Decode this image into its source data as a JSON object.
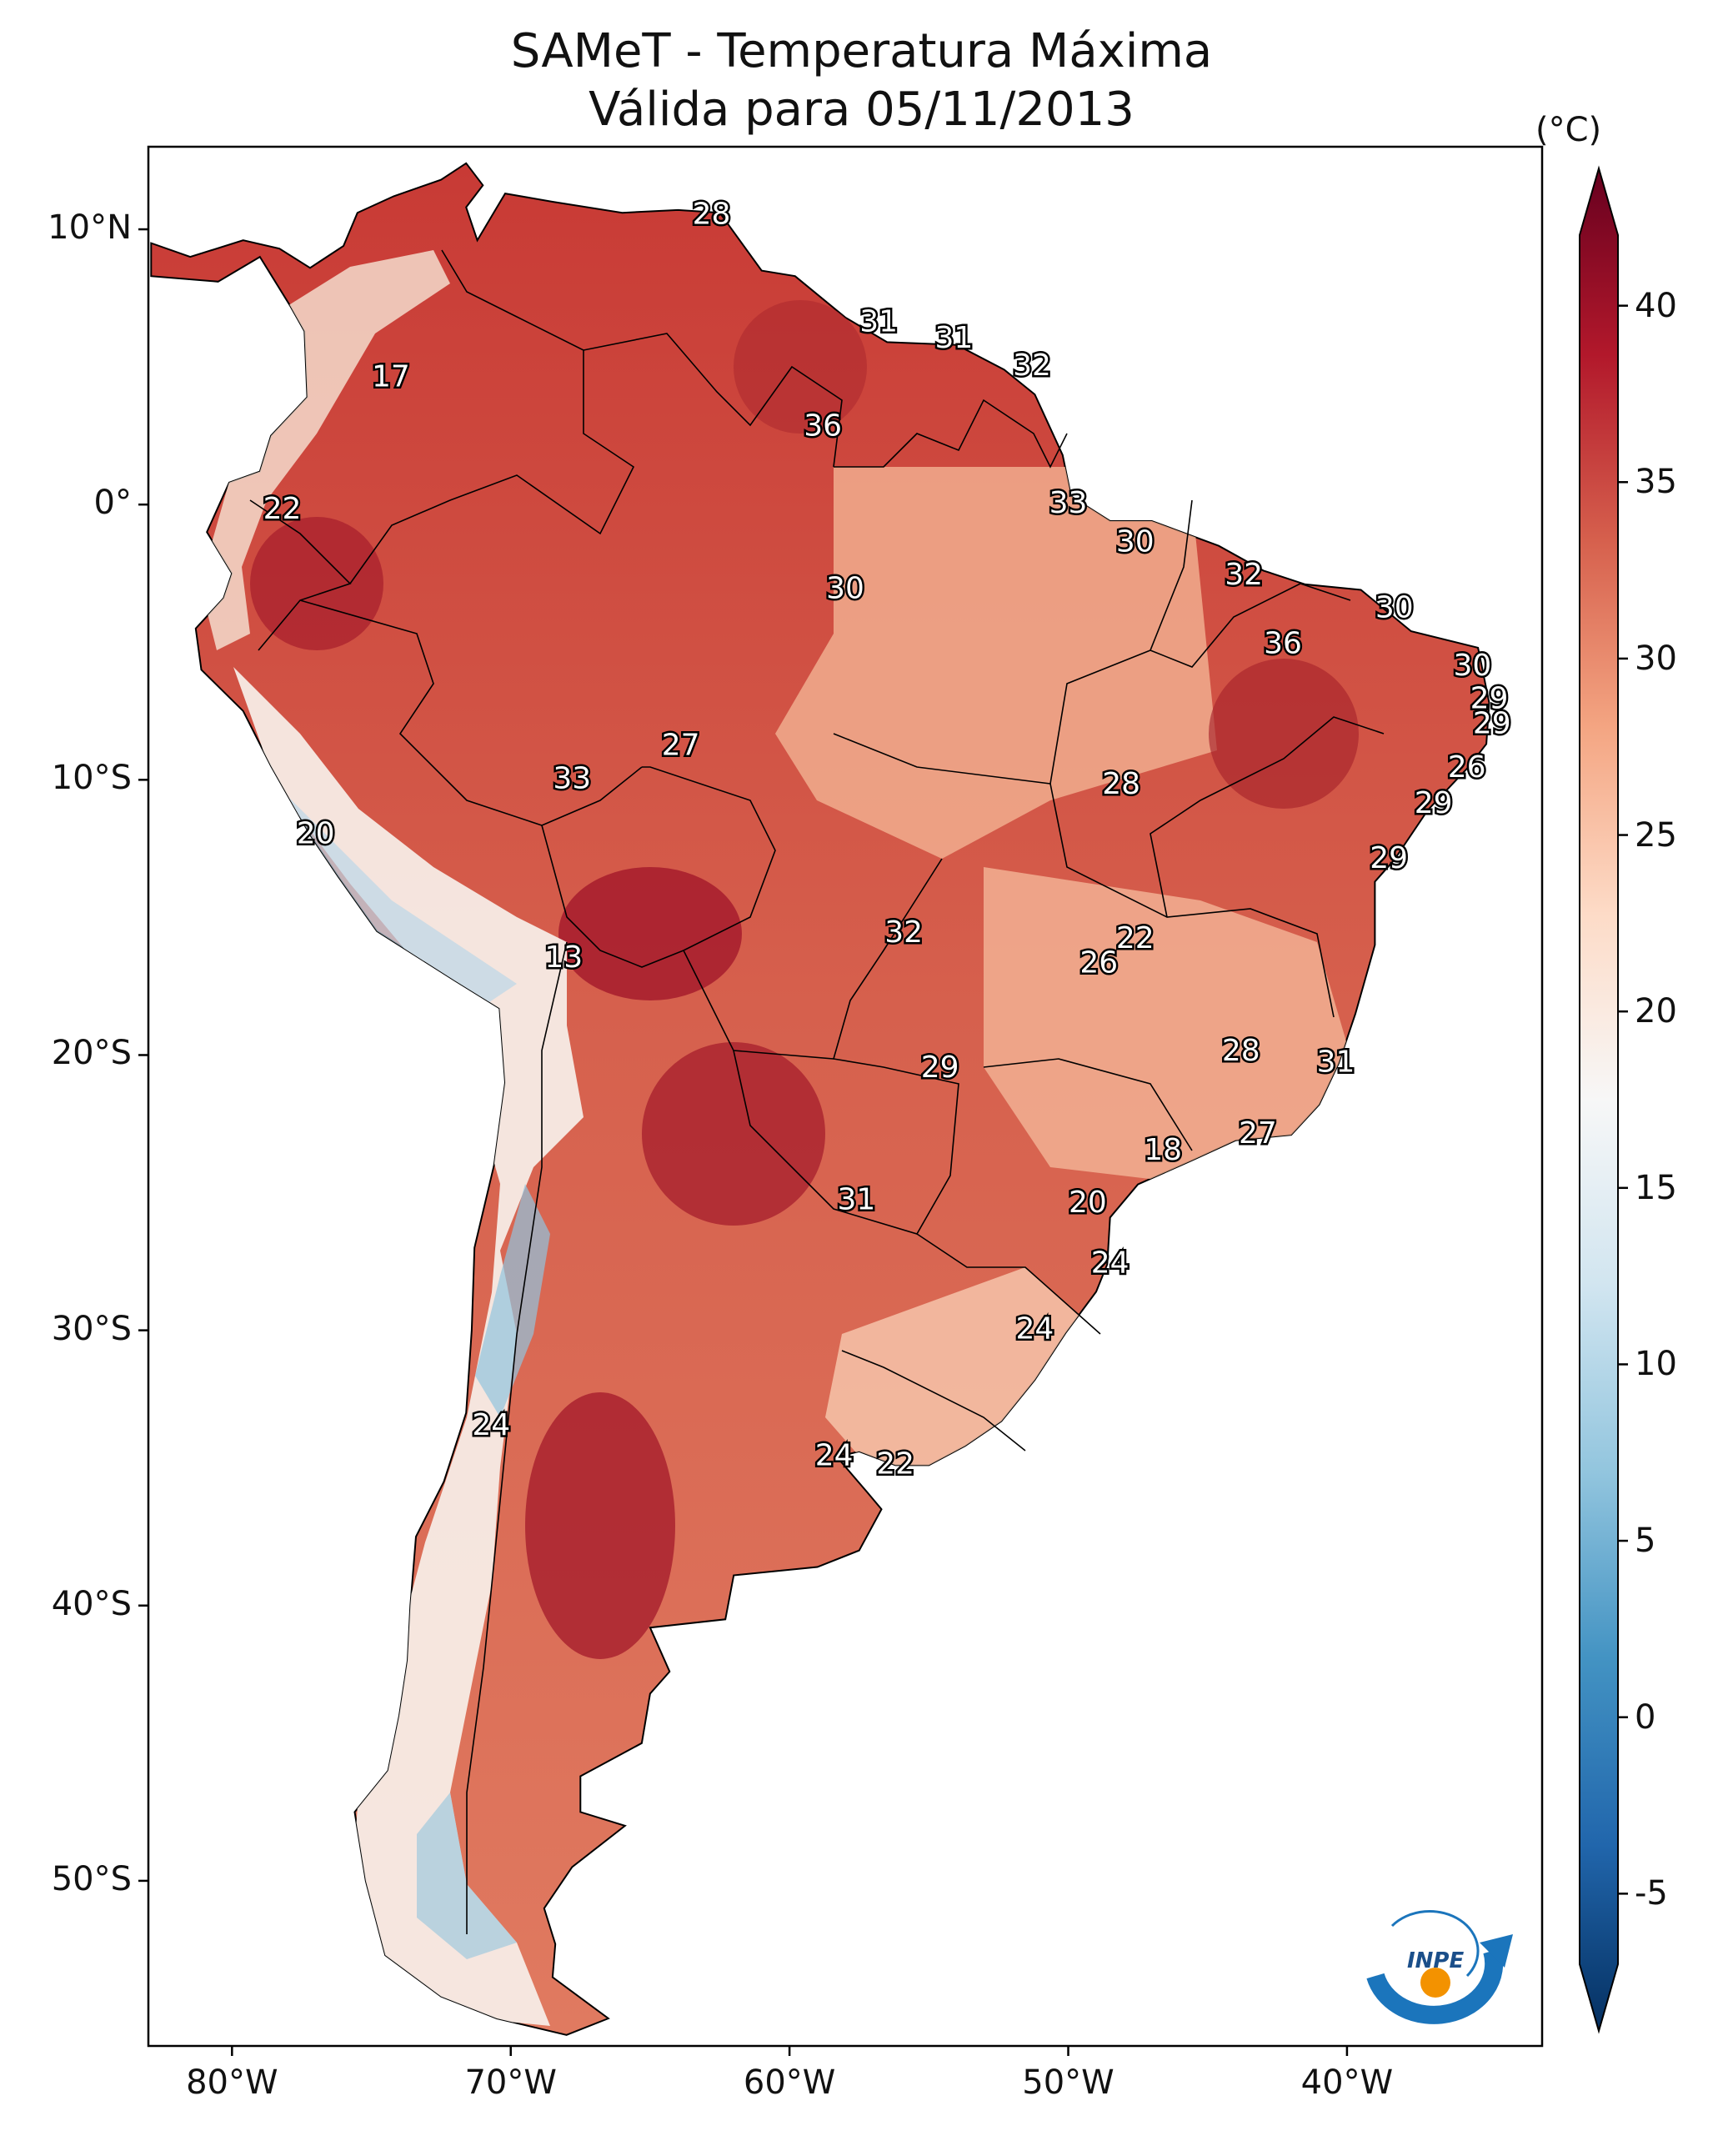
{
  "title": {
    "line1": "SAMeT - Temperatura Máxima",
    "line2": "Válida para 05/11/2013"
  },
  "map": {
    "region": "South America",
    "lon_range": [
      -83,
      -33
    ],
    "lat_range": [
      -56,
      13
    ],
    "lon_ticks": [
      {
        "value": -80,
        "label": "80°W"
      },
      {
        "value": -70,
        "label": "70°W"
      },
      {
        "value": -60,
        "label": "60°W"
      },
      {
        "value": -50,
        "label": "50°W"
      },
      {
        "value": -40,
        "label": "40°W"
      }
    ],
    "lat_ticks": [
      {
        "value": 10,
        "label": "10°N"
      },
      {
        "value": 0,
        "label": "0°"
      },
      {
        "value": -10,
        "label": "10°S"
      },
      {
        "value": -20,
        "label": "20°S"
      },
      {
        "value": -30,
        "label": "30°S"
      },
      {
        "value": -40,
        "label": "40°S"
      },
      {
        "value": -50,
        "label": "50°S"
      }
    ],
    "station_values": [
      {
        "lon": -62.8,
        "lat": 10.5,
        "value": "28"
      },
      {
        "lon": -56.8,
        "lat": 6.6,
        "value": "31"
      },
      {
        "lon": -54.1,
        "lat": 6.0,
        "value": "31"
      },
      {
        "lon": -51.3,
        "lat": 5.0,
        "value": "32"
      },
      {
        "lon": -58.8,
        "lat": 2.8,
        "value": "36"
      },
      {
        "lon": -74.3,
        "lat": 4.6,
        "value": "17"
      },
      {
        "lon": -78.2,
        "lat": -0.2,
        "value": "22"
      },
      {
        "lon": -50.0,
        "lat": 0.0,
        "value": "33"
      },
      {
        "lon": -47.6,
        "lat": -1.4,
        "value": "30"
      },
      {
        "lon": -43.7,
        "lat": -2.6,
        "value": "32"
      },
      {
        "lon": -38.3,
        "lat": -3.8,
        "value": "30"
      },
      {
        "lon": -42.3,
        "lat": -5.1,
        "value": "36"
      },
      {
        "lon": -58.0,
        "lat": -3.1,
        "value": "30"
      },
      {
        "lon": -35.5,
        "lat": -5.9,
        "value": "30"
      },
      {
        "lon": -34.9,
        "lat": -7.1,
        "value": "29"
      },
      {
        "lon": -34.8,
        "lat": -8.0,
        "value": "29"
      },
      {
        "lon": -35.7,
        "lat": -9.6,
        "value": "26"
      },
      {
        "lon": -36.9,
        "lat": -10.9,
        "value": "29"
      },
      {
        "lon": -38.5,
        "lat": -12.9,
        "value": "29"
      },
      {
        "lon": -48.1,
        "lat": -10.2,
        "value": "28"
      },
      {
        "lon": -67.8,
        "lat": -10.0,
        "value": "33"
      },
      {
        "lon": -63.9,
        "lat": -8.8,
        "value": "27"
      },
      {
        "lon": -77.0,
        "lat": -12.0,
        "value": "20"
      },
      {
        "lon": -68.1,
        "lat": -16.5,
        "value": "13"
      },
      {
        "lon": -55.9,
        "lat": -15.6,
        "value": "32"
      },
      {
        "lon": -47.6,
        "lat": -15.8,
        "value": "22"
      },
      {
        "lon": -48.9,
        "lat": -16.7,
        "value": "26"
      },
      {
        "lon": -43.8,
        "lat": -19.9,
        "value": "28"
      },
      {
        "lon": -40.4,
        "lat": -20.3,
        "value": "31"
      },
      {
        "lon": -54.6,
        "lat": -20.5,
        "value": "29"
      },
      {
        "lon": -43.2,
        "lat": -22.9,
        "value": "27"
      },
      {
        "lon": -46.6,
        "lat": -23.5,
        "value": "18"
      },
      {
        "lon": -49.3,
        "lat": -25.4,
        "value": "20"
      },
      {
        "lon": -57.6,
        "lat": -25.3,
        "value": "31"
      },
      {
        "lon": -48.5,
        "lat": -27.6,
        "value": "24"
      },
      {
        "lon": -51.2,
        "lat": -30.0,
        "value": "24"
      },
      {
        "lon": -70.7,
        "lat": -33.5,
        "value": "24"
      },
      {
        "lon": -58.4,
        "lat": -34.6,
        "value": "24"
      },
      {
        "lon": -56.2,
        "lat": -34.9,
        "value": "22"
      }
    ]
  },
  "colorbar": {
    "unit": "(°C)",
    "min": -7,
    "max": 42,
    "tick_values": [
      -5,
      0,
      5,
      10,
      15,
      20,
      25,
      30,
      35,
      40
    ],
    "tick_labels": [
      "-5",
      "0",
      "5",
      "10",
      "15",
      "20",
      "25",
      "30",
      "35",
      "40"
    ],
    "colors": [
      "#053061",
      "#2166ac",
      "#4393c3",
      "#92c5de",
      "#d1e5f0",
      "#f7f7f7",
      "#fddbc7",
      "#f4a582",
      "#d6604d",
      "#b2182b",
      "#67001f"
    ]
  },
  "logo": {
    "text": "INPE",
    "arc_color": "#1b75bc",
    "dot_color": "#f39200"
  }
}
